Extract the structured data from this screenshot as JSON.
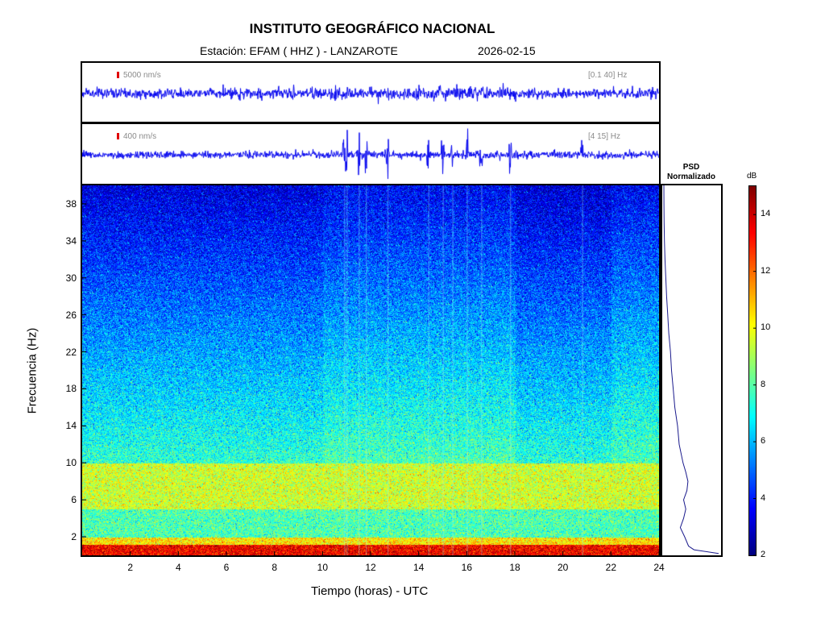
{
  "header": {
    "title": "INSTITUTO GEOGRÁFICO NACIONAL",
    "station": "Estación:  EFAM ( HHZ ) - LANZAROTE",
    "date": "2026-02-15"
  },
  "traces": [
    {
      "scale_label": "5000 nm/s",
      "band_label": "[0.1 40] Hz",
      "trace_color": "#0000ee"
    },
    {
      "scale_label": "400 nm/s",
      "band_label": "[4 15] Hz",
      "trace_color": "#0000ee"
    }
  ],
  "psd": {
    "title_line1": "PSD",
    "title_line2": "Normalizado"
  },
  "colorbar": {
    "unit": "dB",
    "min": 2,
    "max": 15,
    "ticks": [
      "2",
      "4",
      "6",
      "8",
      "10",
      "12",
      "14"
    ]
  },
  "chart_data": {
    "type": "heatmap",
    "xlabel": "Tiempo (horas) - UTC",
    "ylabel": "Frecuencia  (Hz)",
    "xlim": [
      0,
      24
    ],
    "ylim": [
      0,
      40
    ],
    "xticks": [
      "2",
      "4",
      "6",
      "8",
      "10",
      "12",
      "14",
      "16",
      "18",
      "20",
      "22",
      "24"
    ],
    "yticks": [
      "2",
      "6",
      "10",
      "14",
      "18",
      "22",
      "26",
      "30",
      "34",
      "38"
    ],
    "psd_profile": {
      "freq_hz": [
        0.2,
        0.6,
        1,
        2,
        3,
        4,
        5,
        6,
        7,
        8,
        9,
        10,
        12,
        14,
        16,
        18,
        20,
        22,
        24,
        26,
        28,
        30,
        32,
        34,
        36,
        38,
        40
      ],
      "normalized": [
        1.0,
        0.55,
        0.45,
        0.38,
        0.3,
        0.36,
        0.4,
        0.36,
        0.42,
        0.44,
        0.4,
        0.35,
        0.28,
        0.25,
        0.2,
        0.17,
        0.14,
        0.12,
        0.09,
        0.07,
        0.05,
        0.035,
        0.02,
        0.01,
        0.004,
        0.002,
        0.0
      ]
    },
    "transient_hours": [
      10.9,
      11.0,
      11.5,
      11.8,
      12.7,
      14.4,
      15.0,
      15.4,
      16.0,
      16.6,
      17.8,
      20.8
    ]
  }
}
